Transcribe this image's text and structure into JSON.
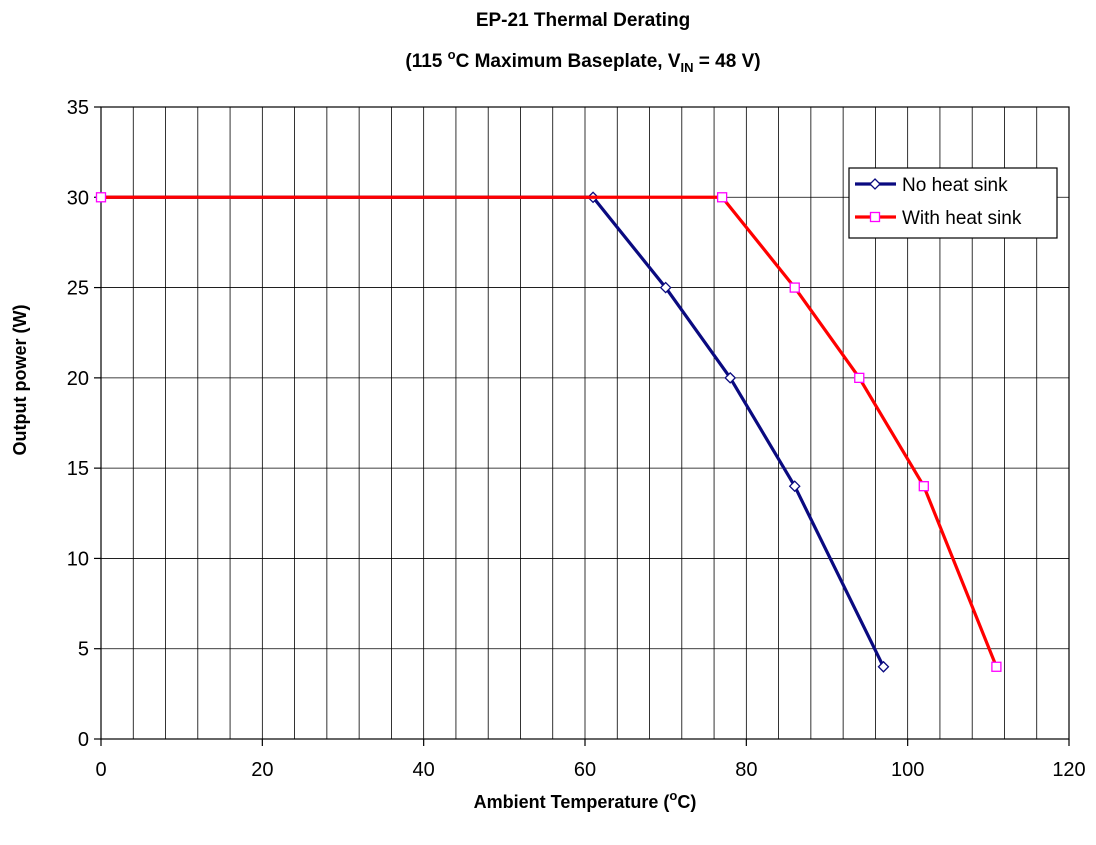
{
  "chart_data": {
    "type": "line",
    "title": "EP-21 Thermal Derating",
    "subtitle": {
      "pre": "(115 ",
      "sup": "o",
      "mid": "C Maximum Baseplate, V",
      "sub": "IN",
      "post": " = 48 V)"
    },
    "xlabel": {
      "text": "Ambient Temperature (",
      "sup": "o",
      "post": "C)"
    },
    "ylabel": "Output power (W)",
    "xlim": [
      0,
      120
    ],
    "ylim": [
      0,
      35
    ],
    "xticks": [
      0,
      20,
      40,
      60,
      80,
      100,
      120
    ],
    "yticks": [
      0,
      5,
      10,
      15,
      20,
      25,
      30,
      35
    ],
    "x_gridline_step": 4,
    "y_gridline_step": 5,
    "grid": true,
    "legend_position": "top-right",
    "series": [
      {
        "name": "No heat sink",
        "color": "#0a0a80",
        "marker": "diamond",
        "marker_color": "#0a0a80",
        "points": [
          [
            0,
            30
          ],
          [
            61,
            30
          ],
          [
            70,
            25
          ],
          [
            78,
            20
          ],
          [
            86,
            14
          ],
          [
            97,
            4
          ]
        ]
      },
      {
        "name": "With heat sink",
        "color": "#ff0000",
        "marker": "square",
        "marker_color": "#ff00ff",
        "points": [
          [
            0,
            30
          ],
          [
            77,
            30
          ],
          [
            86,
            25
          ],
          [
            94,
            20
          ],
          [
            102,
            14
          ],
          [
            111,
            4
          ]
        ]
      }
    ]
  }
}
